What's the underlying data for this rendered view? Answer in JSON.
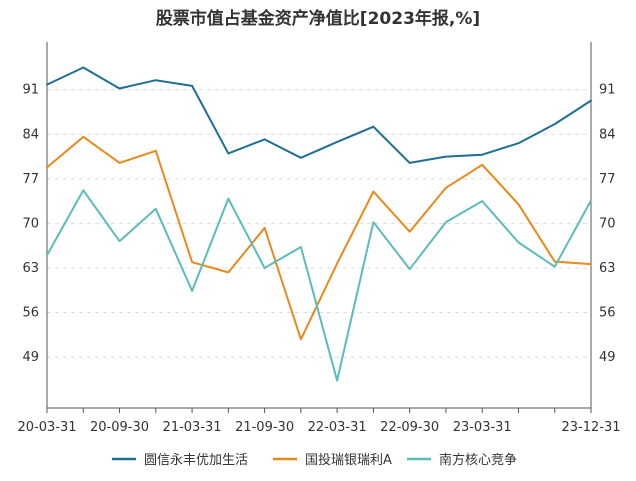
{
  "chart_data": {
    "type": "line",
    "title": "股票市值占基金资产净值比[2023年报,%]",
    "x_ticks": [
      "20-03-31",
      "20-09-30",
      "21-03-31",
      "21-09-30",
      "22-03-31",
      "22-09-30",
      "23-03-31",
      "23-12-31"
    ],
    "x": [
      "20-03-31",
      "20-06-30",
      "20-09-30",
      "20-12-31",
      "21-03-31",
      "21-06-30",
      "21-09-30",
      "21-12-31",
      "22-03-31",
      "22-06-30",
      "22-09-30",
      "22-12-31",
      "23-03-31",
      "23-06-30",
      "23-09-30",
      "23-12-31"
    ],
    "yticks": [
      49,
      56,
      63,
      70,
      77,
      84,
      91
    ],
    "ylim": [
      41,
      98.5
    ],
    "grid": true,
    "legend_position": "bottom",
    "series": [
      {
        "name": "圆信永丰优加生活",
        "color": "#1f6f94",
        "values": [
          91.8,
          94.5,
          91.2,
          92.5,
          91.6,
          81.0,
          83.2,
          80.3,
          82.8,
          85.2,
          79.5,
          80.5,
          80.8,
          82.6,
          85.6,
          89.3
        ]
      },
      {
        "name": "国投瑞银瑞利A",
        "color": "#e8891e",
        "values": [
          78.8,
          83.6,
          79.5,
          81.4,
          63.9,
          62.3,
          69.3,
          51.8,
          63.7,
          75.0,
          68.7,
          75.6,
          79.2,
          73.0,
          64.0,
          63.6
        ]
      },
      {
        "name": "南方核心竞争",
        "color": "#5bbcb9",
        "values": [
          65.0,
          75.2,
          67.2,
          72.3,
          59.4,
          73.9,
          63.0,
          66.3,
          45.3,
          70.2,
          62.8,
          70.2,
          73.5,
          67.0,
          63.2,
          73.6
        ]
      }
    ]
  }
}
